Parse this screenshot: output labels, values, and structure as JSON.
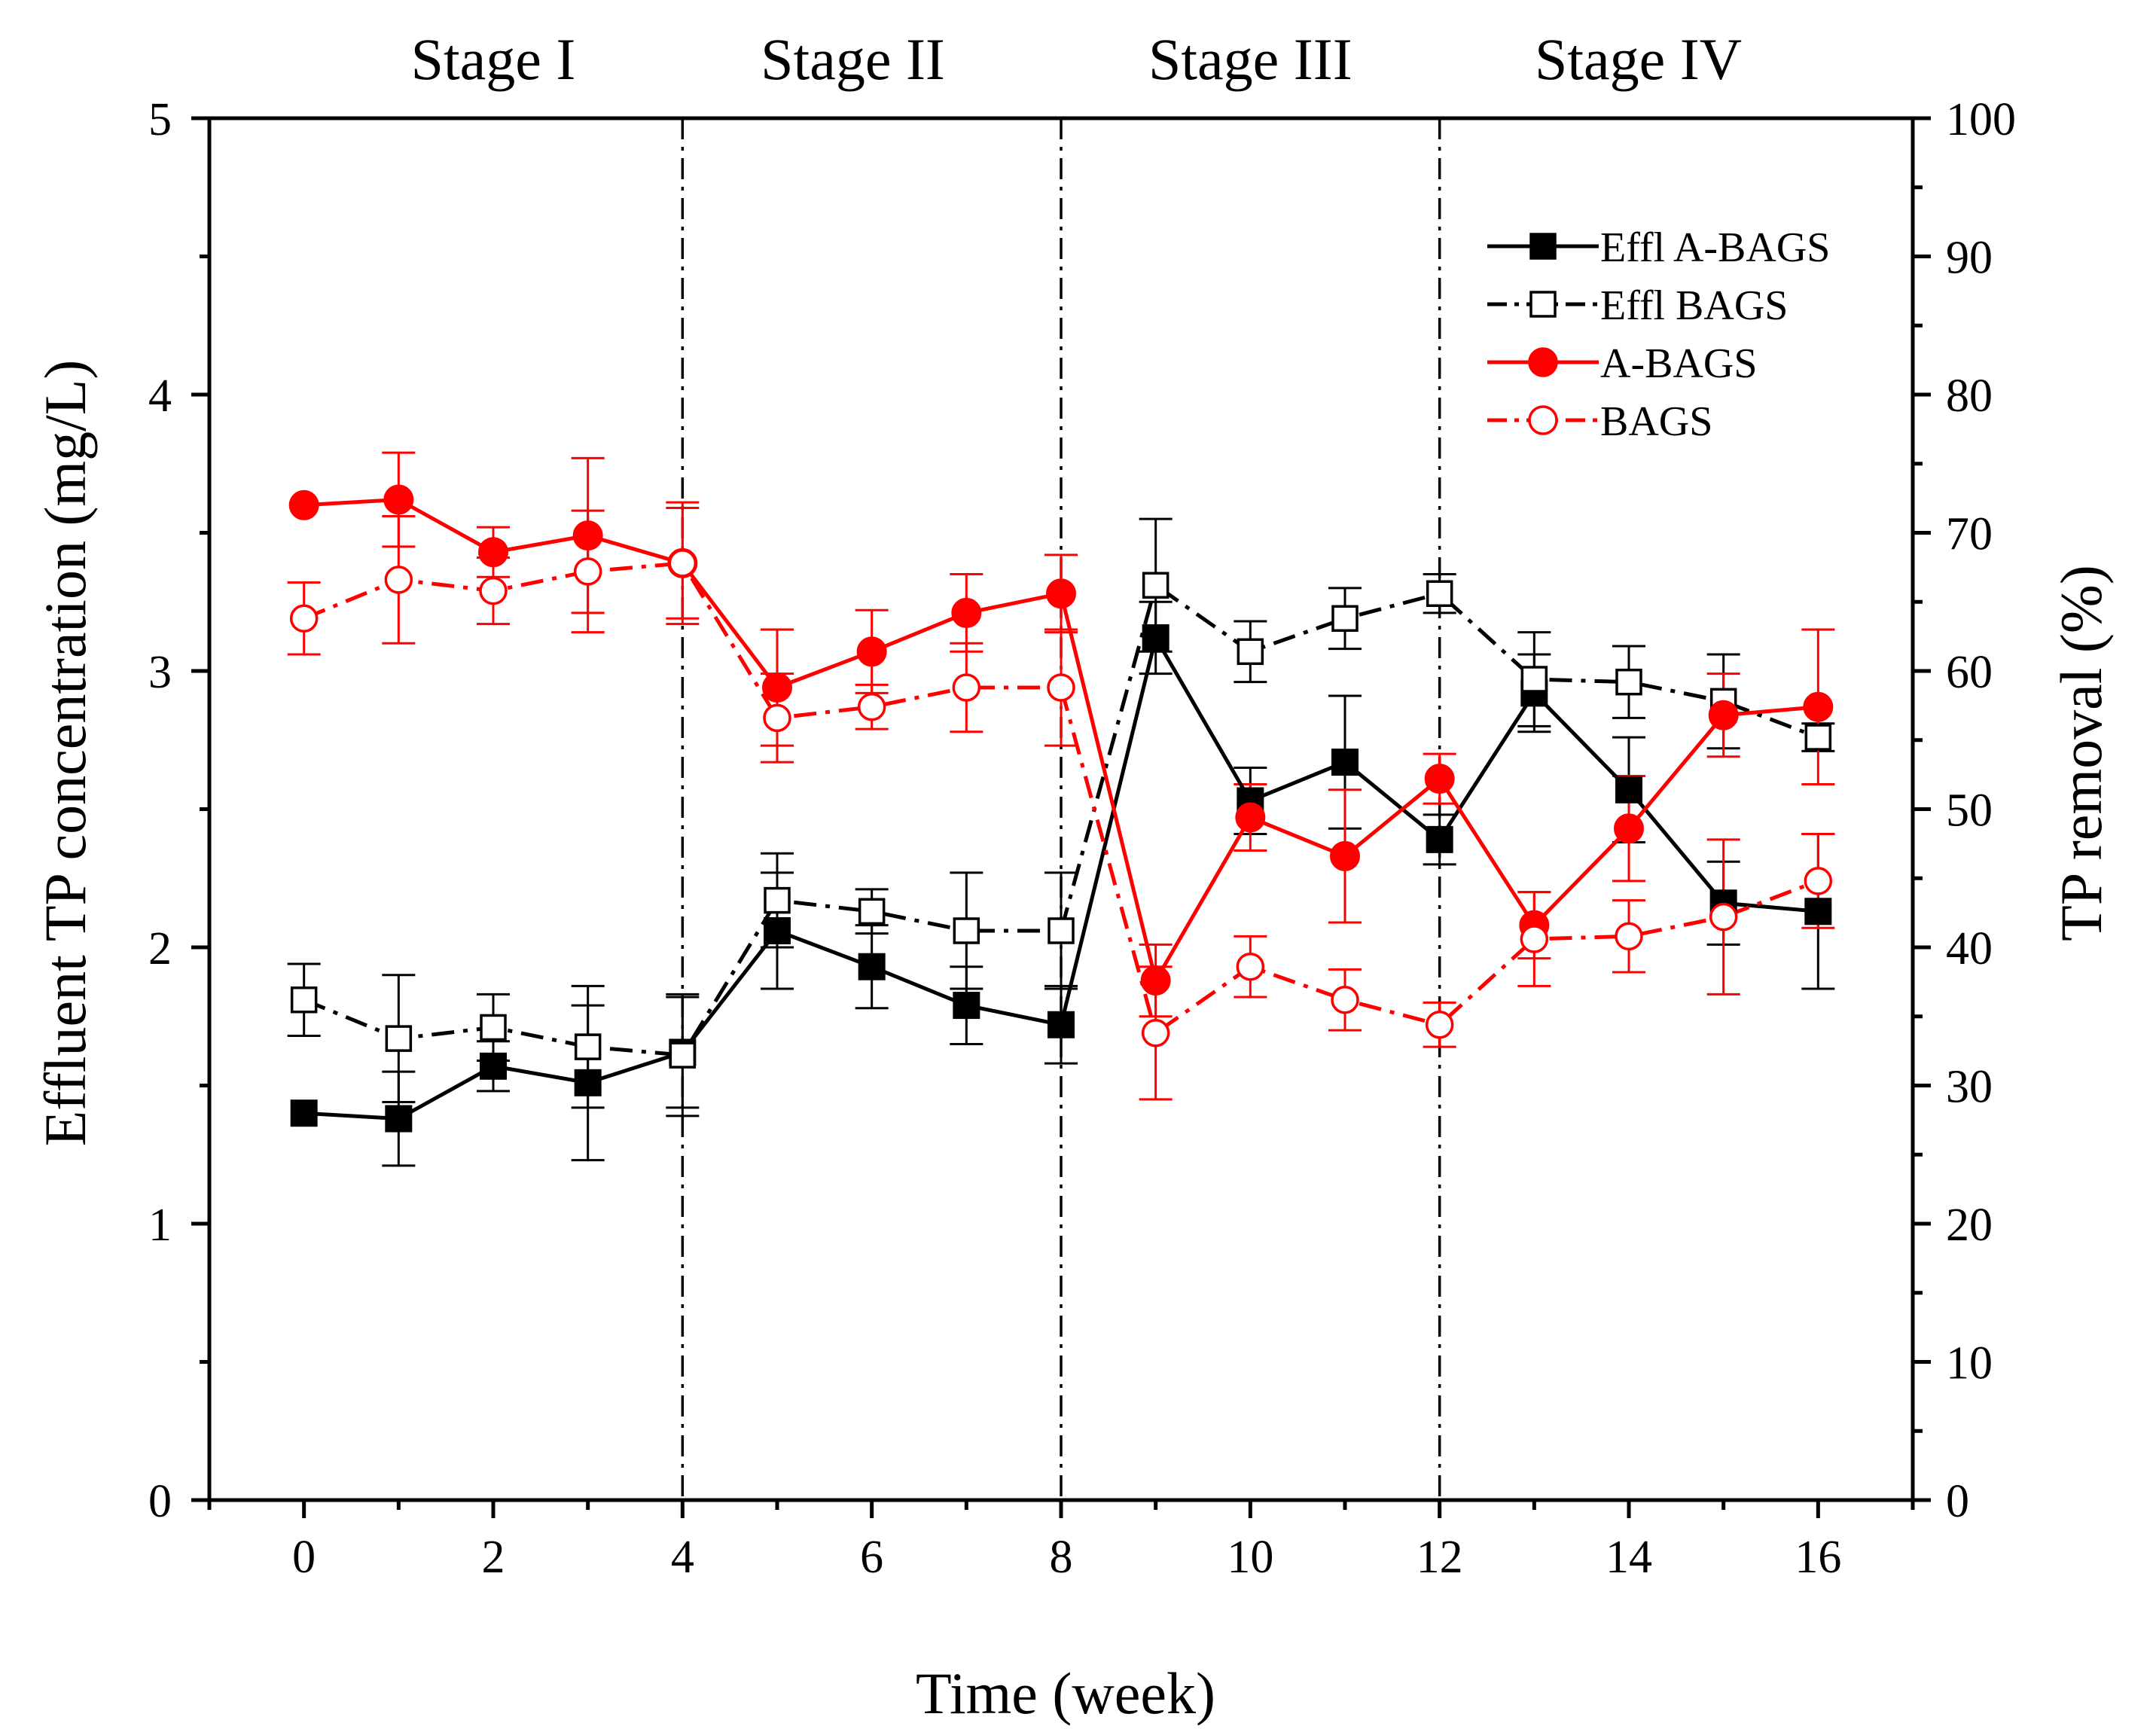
{
  "chart_data": {
    "type": "line",
    "x_axis": {
      "label": "Time (week)",
      "range": [
        -1,
        17
      ],
      "ticks": [
        0,
        2,
        4,
        6,
        8,
        10,
        12,
        14,
        16
      ],
      "minor_ticks": [
        -1,
        1,
        3,
        5,
        7,
        9,
        11,
        13,
        15,
        17
      ]
    },
    "y_left": {
      "label": "Effluent TP concentration (mg/L)",
      "range": [
        0,
        5
      ],
      "ticks": [
        0,
        1,
        2,
        3,
        4,
        5
      ]
    },
    "y_right": {
      "label": "TP removal (%)",
      "range": [
        0,
        100
      ],
      "ticks": [
        0,
        10,
        20,
        30,
        40,
        50,
        60,
        70,
        80,
        90,
        100
      ]
    },
    "stage_boundaries": [
      4,
      8,
      12
    ],
    "stages": [
      {
        "label": "Stage I",
        "x_center": 2
      },
      {
        "label": "Stage II",
        "x_center": 5.8
      },
      {
        "label": "Stage III",
        "x_center": 10
      },
      {
        "label": "Stage IV",
        "x_center": 14.1
      }
    ],
    "series": [
      {
        "name": "Effl A-BAGS",
        "axis": "left",
        "color": "#000000",
        "marker": "square",
        "filled": true,
        "dash": "solid",
        "x": [
          0,
          1,
          2,
          3,
          4,
          5,
          6,
          7,
          8,
          9,
          10,
          11,
          12,
          13,
          14,
          15,
          16
        ],
        "values": [
          1.4,
          1.38,
          1.57,
          1.51,
          1.62,
          2.06,
          1.93,
          1.79,
          1.72,
          3.12,
          2.53,
          2.67,
          2.39,
          2.92,
          2.57,
          2.16,
          2.13
        ],
        "errors": [
          0,
          0.17,
          0.09,
          0.28,
          0.2,
          0.21,
          0.15,
          0.14,
          0.14,
          0.13,
          0.12,
          0.24,
          0.09,
          0.14,
          0.19,
          0.15,
          0.28
        ]
      },
      {
        "name": "Effl BAGS",
        "axis": "left",
        "color": "#000000",
        "marker": "square",
        "filled": false,
        "dash": "dashdot",
        "x": [
          0,
          1,
          2,
          3,
          4,
          5,
          6,
          7,
          8,
          9,
          10,
          11,
          12,
          13,
          14,
          15,
          16
        ],
        "values": [
          1.81,
          1.67,
          1.71,
          1.64,
          1.61,
          2.17,
          2.13,
          2.06,
          2.06,
          3.31,
          3.07,
          3.19,
          3.28,
          2.97,
          2.96,
          2.89,
          2.76
        ],
        "errors": [
          0.13,
          0.23,
          0.12,
          0.22,
          0.22,
          0.17,
          0.08,
          0.21,
          0.21,
          0.24,
          0.11,
          0.11,
          0.07,
          0.17,
          0.13,
          0.17,
          0.05
        ]
      },
      {
        "name": "A-BAGS",
        "axis": "right",
        "color": "#ff0000",
        "marker": "circle",
        "filled": true,
        "dash": "solid",
        "x": [
          0,
          1,
          2,
          3,
          4,
          5,
          6,
          7,
          8,
          9,
          10,
          11,
          12,
          13,
          14,
          15,
          16
        ],
        "values": [
          72,
          72.4,
          68.6,
          69.8,
          67.8,
          58.8,
          61.4,
          64.2,
          65.6,
          37.6,
          49.4,
          46.6,
          52.2,
          41.6,
          48.6,
          56.8,
          57.4
        ],
        "errors": [
          0,
          3.4,
          1.8,
          5.6,
          4.4,
          4.2,
          3.0,
          2.8,
          2.8,
          2.6,
          2.4,
          4.8,
          1.8,
          2.4,
          3.8,
          3.0,
          5.6
        ]
      },
      {
        "name": "BAGS",
        "axis": "right",
        "color": "#ff0000",
        "marker": "circle",
        "filled": false,
        "dash": "dashdot",
        "x": [
          0,
          1,
          2,
          3,
          4,
          5,
          6,
          7,
          8,
          9,
          10,
          11,
          12,
          13,
          14,
          15,
          16
        ],
        "values": [
          63.8,
          66.6,
          65.8,
          67.2,
          67.8,
          56.6,
          57.4,
          58.8,
          58.8,
          33.8,
          38.6,
          36.2,
          34.4,
          40.6,
          40.8,
          42.2,
          44.8
        ],
        "errors": [
          2.6,
          4.6,
          2.4,
          4.4,
          4.0,
          3.2,
          1.6,
          3.2,
          4.2,
          4.8,
          2.2,
          2.2,
          1.6,
          3.4,
          2.6,
          5.6,
          3.4
        ]
      }
    ],
    "legend": {
      "position": "top-right"
    }
  }
}
